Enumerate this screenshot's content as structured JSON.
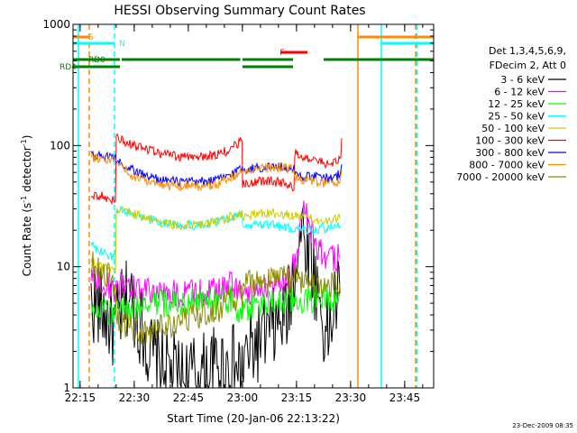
{
  "chart_data": {
    "type": "line",
    "title": "HESSI Observing Summary Count Rates",
    "xlabel": "Start Time (20-Jan-06 22:13:22)",
    "ylabel_main": "Count Rate (s",
    "ylabel_sup1": "-1",
    "ylabel_mid": " detector",
    "ylabel_sup2": "-1",
    "ylabel_end": ")",
    "y_scale": "log",
    "ylim": [
      1,
      1000
    ],
    "xlim_minutes": [
      0,
      100
    ],
    "x_ticks": [
      {
        "t": 1.97,
        "label": "22:15"
      },
      {
        "t": 16.97,
        "label": "22:30"
      },
      {
        "t": 31.97,
        "label": "22:45"
      },
      {
        "t": 46.97,
        "label": "23:00"
      },
      {
        "t": 61.97,
        "label": "23:15"
      },
      {
        "t": 76.97,
        "label": "23:30"
      },
      {
        "t": 91.97,
        "label": "23:45"
      }
    ],
    "y_ticks": [
      {
        "v": 1,
        "label": "1"
      },
      {
        "v": 10,
        "label": "10"
      },
      {
        "v": 100,
        "label": "100"
      },
      {
        "v": 1000,
        "label": "1000"
      }
    ],
    "legend_header": [
      "Det 1,3,4,5,6,9,",
      "FDecim 2, Att 0"
    ],
    "legend_placement": "right",
    "series": [
      {
        "name": "3 - 6 keV",
        "color": "#000000",
        "x": [
          5,
          8,
          10,
          11.5,
          13,
          14.5,
          15.5,
          16.5,
          17.5,
          18.5,
          19.5,
          21,
          25,
          30,
          35,
          40,
          44,
          46.4,
          47,
          49,
          52,
          55,
          58,
          59,
          60,
          61,
          62,
          63,
          63.5,
          64,
          65,
          66,
          67,
          68,
          69,
          70,
          71,
          72,
          73,
          74
        ],
        "y": [
          5,
          4.5,
          3.5,
          3,
          4,
          5,
          6,
          5,
          4,
          3.5,
          3,
          2,
          1.5,
          1.2,
          1.3,
          1.5,
          1.6,
          1.3,
          1.6,
          2,
          2.5,
          3,
          3.5,
          4,
          5,
          8,
          14,
          18,
          20,
          18,
          15,
          12,
          8,
          6,
          4,
          2.5,
          3,
          4,
          5.5,
          6
        ]
      },
      {
        "name": "6 - 12 keV",
        "color": "#ff00ff",
        "x": [
          5,
          8,
          10,
          11.5,
          14,
          17,
          21,
          25,
          30,
          35,
          40,
          44,
          46.4,
          47,
          50,
          55,
          58,
          60,
          62,
          63,
          64,
          65,
          66,
          67,
          68,
          70,
          72,
          74
        ],
        "y": [
          8,
          7.5,
          7,
          6.5,
          7,
          7,
          6.5,
          6,
          6,
          6.2,
          6.5,
          7,
          6.5,
          6.5,
          6.2,
          6.5,
          7,
          8,
          12,
          22,
          27,
          25,
          20,
          16,
          14,
          12,
          11.5,
          12
        ]
      },
      {
        "name": "12 - 25 keV",
        "color": "#00ff00",
        "x": [
          5,
          8,
          10,
          11.5,
          14,
          17,
          21,
          25,
          30,
          35,
          40,
          44,
          46.4,
          47,
          50,
          55,
          58,
          62,
          65,
          68,
          71,
          74
        ],
        "y": [
          5,
          4.5,
          4.2,
          4,
          4.5,
          4.8,
          5,
          5,
          5,
          5.1,
          5.2,
          5.4,
          4.2,
          4.5,
          4.8,
          5,
          5.1,
          5.2,
          5.3,
          5.5,
          5.7,
          5.8
        ]
      },
      {
        "name": "25 - 50 keV",
        "color": "#00ffff",
        "x": [
          5,
          8,
          10,
          11.5,
          12,
          14,
          17,
          21,
          25,
          30,
          35,
          40,
          44,
          46.4,
          47,
          50,
          55,
          58,
          60,
          62,
          65,
          68,
          71,
          74
        ],
        "y": [
          15,
          13,
          12.5,
          12,
          30,
          29,
          27,
          25,
          23,
          22,
          22,
          23.5,
          26,
          27,
          21,
          22,
          22,
          21.5,
          21,
          21,
          20.5,
          20.5,
          21,
          22
        ]
      },
      {
        "name": "50 - 100 keV",
        "color": "#cccc00",
        "x": [
          5,
          8,
          10,
          11.5,
          12,
          14,
          17,
          21,
          25,
          30,
          35,
          40,
          44,
          46.4,
          47,
          50,
          55,
          58,
          62,
          65,
          68,
          71,
          74
        ],
        "y": [
          11,
          10,
          9.5,
          9,
          30,
          29,
          27,
          25,
          23,
          22,
          22,
          23.5,
          26,
          27,
          26,
          27,
          28,
          27,
          26,
          25,
          24.5,
          24,
          25
        ]
      },
      {
        "name": "100 - 300 keV",
        "color": "#ff0000",
        "x": [
          5,
          8,
          10,
          11.5,
          12,
          14,
          17,
          21,
          25,
          30,
          35,
          40,
          44,
          46.4,
          47,
          50,
          55,
          58,
          61,
          61.5,
          62,
          64,
          67,
          70,
          73,
          74,
          74.5
        ],
        "y": [
          40,
          38,
          36,
          35,
          115,
          108,
          100,
          92,
          85,
          80,
          80,
          84,
          94,
          108,
          48,
          50,
          51,
          49,
          46,
          86,
          85,
          80,
          75,
          72,
          72,
          80,
          115
        ]
      },
      {
        "name": "300 - 800 keV",
        "color": "#0000ff",
        "x": [
          5,
          8,
          10,
          11.5,
          12,
          14,
          17,
          21,
          25,
          30,
          35,
          40,
          44,
          46.4,
          47,
          50,
          55,
          58,
          61,
          61.5,
          62,
          64,
          67,
          70,
          73,
          74,
          74.5
        ],
        "y": [
          85,
          82,
          80,
          78,
          75,
          70,
          62,
          55,
          52,
          50,
          50,
          52,
          58,
          65,
          63,
          65,
          67,
          66,
          65,
          58,
          57,
          56,
          55,
          54,
          55,
          60,
          70
        ]
      },
      {
        "name": "800 - 7000 keV",
        "color": "#ff8c00",
        "x": [
          5,
          8,
          10,
          11.5,
          12,
          14,
          17,
          21,
          25,
          30,
          35,
          40,
          44,
          46.4,
          47,
          50,
          55,
          58,
          61,
          61.5,
          62,
          64,
          67,
          70,
          73,
          74,
          74.5
        ],
        "y": [
          80,
          78,
          76,
          75,
          72,
          65,
          56,
          50,
          47,
          46,
          46,
          48,
          54,
          60,
          62,
          64,
          66,
          65,
          64,
          55,
          54,
          52,
          50,
          49,
          48,
          52,
          62
        ]
      },
      {
        "name": "7000 - 20000 keV",
        "color": "#8b8b00",
        "x": [
          5,
          8,
          10,
          11.5,
          12,
          14,
          17,
          21,
          25,
          30,
          35,
          40,
          44,
          46.4,
          47,
          50,
          55,
          58,
          62,
          65,
          68,
          71,
          74
        ],
        "y": [
          11,
          9,
          8,
          7,
          4,
          3.5,
          3,
          3,
          3.2,
          3.5,
          4,
          4.5,
          5.2,
          6,
          7.5,
          7.5,
          7.8,
          7.8,
          7.6,
          7.4,
          7.2,
          7.3,
          7.5
        ]
      }
    ],
    "flags": [
      {
        "label": "S",
        "color": "#ff8c00",
        "segments": [
          [
            0,
            4.5
          ],
          [
            79,
            100
          ]
        ]
      },
      {
        "label": "N",
        "color": "#00ffff",
        "segments": [
          [
            0,
            11.5
          ],
          [
            85.5,
            100
          ]
        ]
      },
      {
        "label": "F",
        "color": "#ff0000",
        "segments": [
          [
            57.5,
            65
          ]
        ]
      },
      {
        "label": "RD0",
        "color": "#008000",
        "segments": [
          [
            0,
            13
          ],
          [
            13.5,
            46.4
          ],
          [
            47,
            61
          ],
          [
            69.5,
            100
          ]
        ]
      },
      {
        "label": "RD4",
        "color": "#008000",
        "segments": [
          [
            0,
            13
          ],
          [
            47,
            61
          ]
        ]
      }
    ],
    "vertical_lines": [
      {
        "t": 1.5,
        "color": "#00ffff",
        "style": "solid"
      },
      {
        "t": 4.5,
        "color": "#ff8c00",
        "style": "dashed"
      },
      {
        "t": 11.5,
        "color": "#00ffff",
        "style": "dashed"
      },
      {
        "t": 79,
        "color": "#ff8c00",
        "style": "solid"
      },
      {
        "t": 85.5,
        "color": "#00ffff",
        "style": "solid"
      },
      {
        "t": 95,
        "color": "#ff8c00",
        "style": "dashed"
      },
      {
        "t": 95.3,
        "color": "#00ffff",
        "style": "dashed"
      }
    ],
    "timestamp": "23-Dec-2009 08:35"
  }
}
